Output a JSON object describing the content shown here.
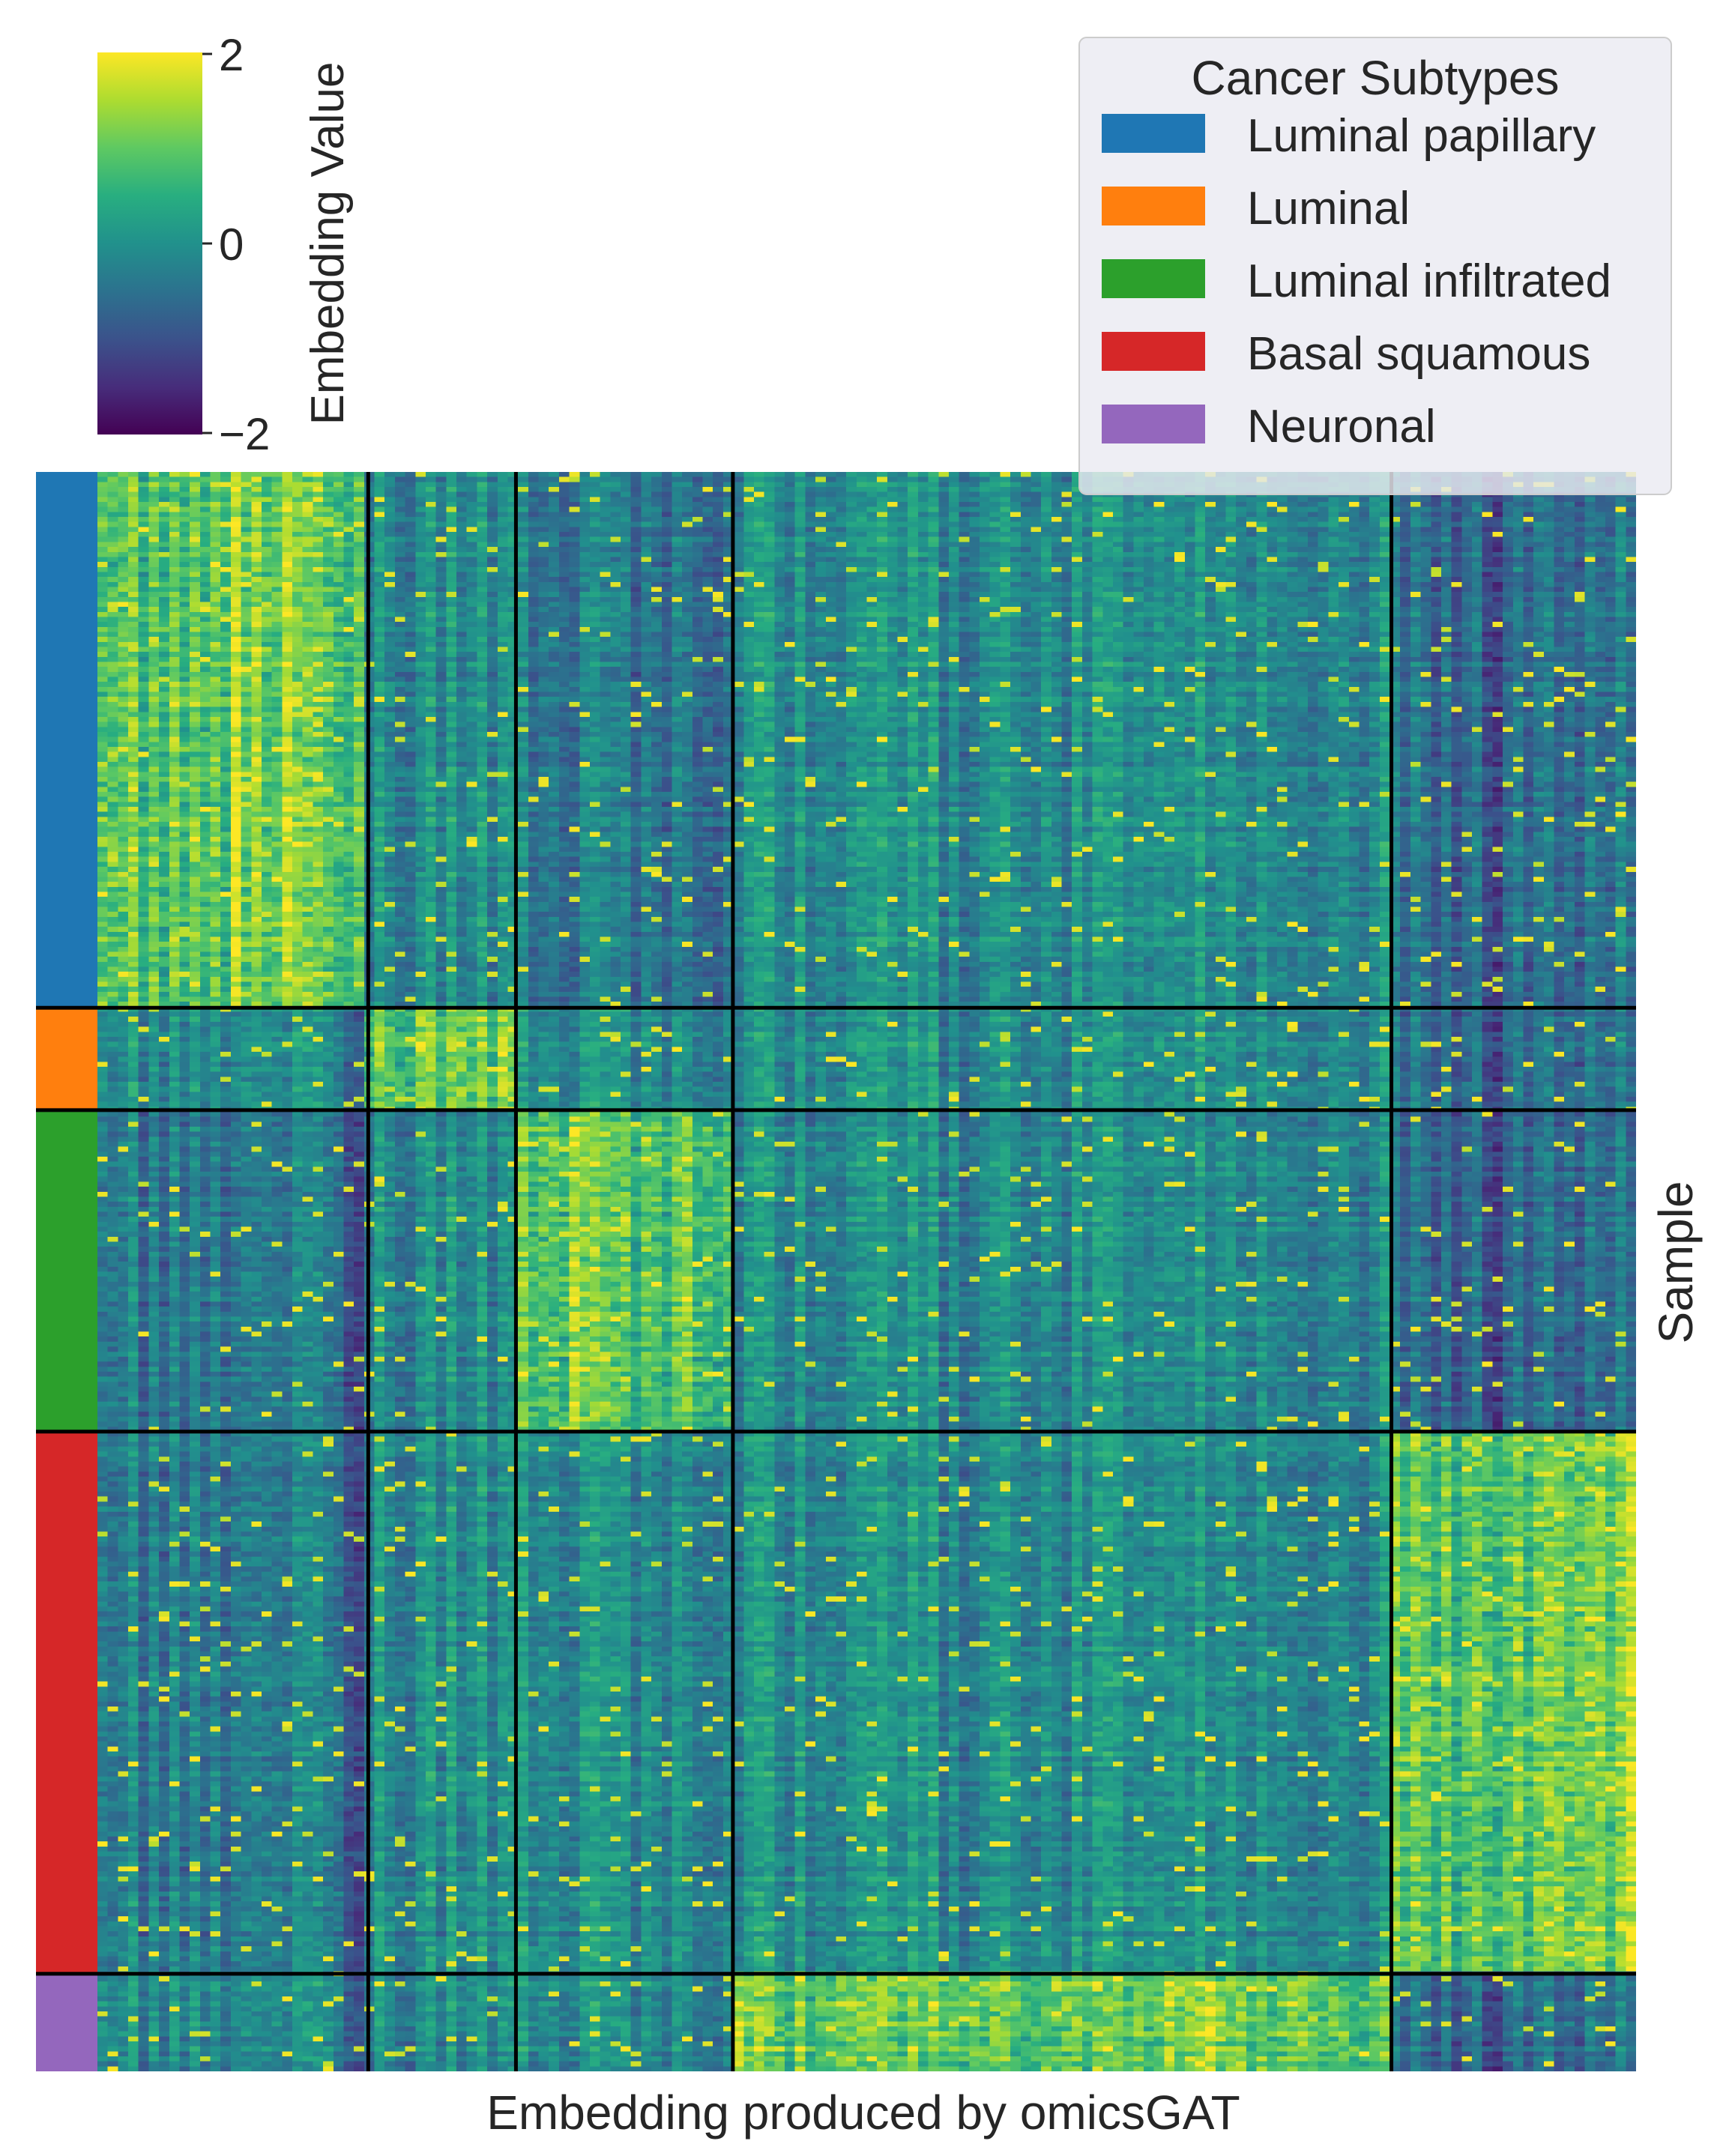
{
  "chart_data": {
    "type": "heatmap",
    "title": "",
    "xlabel": "Embedding produced by omicsGAT",
    "ylabel": "Sample",
    "colormap": "viridis",
    "colorbar": {
      "label": "Embedding Value",
      "vmin": -2,
      "vmax": 2,
      "ticks": [
        2,
        0,
        -2
      ],
      "tick_labels": [
        "2",
        "0",
        "−2"
      ]
    },
    "legend": {
      "title": "Cancer Subtypes",
      "placement": "top-right",
      "entries": [
        {
          "label": "Luminal papillary",
          "color": "#1f77b4"
        },
        {
          "label": "Luminal",
          "color": "#ff7f0e"
        },
        {
          "label": "Luminal infiltrated",
          "color": "#2ca02c"
        },
        {
          "label": "Basal squamous",
          "color": "#d62728"
        },
        {
          "label": "Neuronal",
          "color": "#9467bd"
        }
      ]
    },
    "sample_groups": [
      {
        "subtype": "Luminal papillary",
        "color": "#1f77b4",
        "fraction": 0.335
      },
      {
        "subtype": "Luminal",
        "color": "#ff7f0e",
        "fraction": 0.064
      },
      {
        "subtype": "Luminal infiltrated",
        "color": "#2ca02c",
        "fraction": 0.201
      },
      {
        "subtype": "Basal squamous",
        "color": "#d62728",
        "fraction": 0.339
      },
      {
        "subtype": "Neuronal",
        "color": "#9467bd",
        "fraction": 0.061
      }
    ],
    "embedding_clusters": [
      {
        "fraction": 0.176,
        "high_in": "Luminal papillary"
      },
      {
        "fraction": 0.096,
        "high_in": "Luminal"
      },
      {
        "fraction": 0.141,
        "high_in": "Luminal infiltrated"
      },
      {
        "fraction": 0.428,
        "high_in": "Neuronal"
      },
      {
        "fraction": 0.159,
        "high_in": "Basal squamous"
      }
    ],
    "grid": false
  }
}
